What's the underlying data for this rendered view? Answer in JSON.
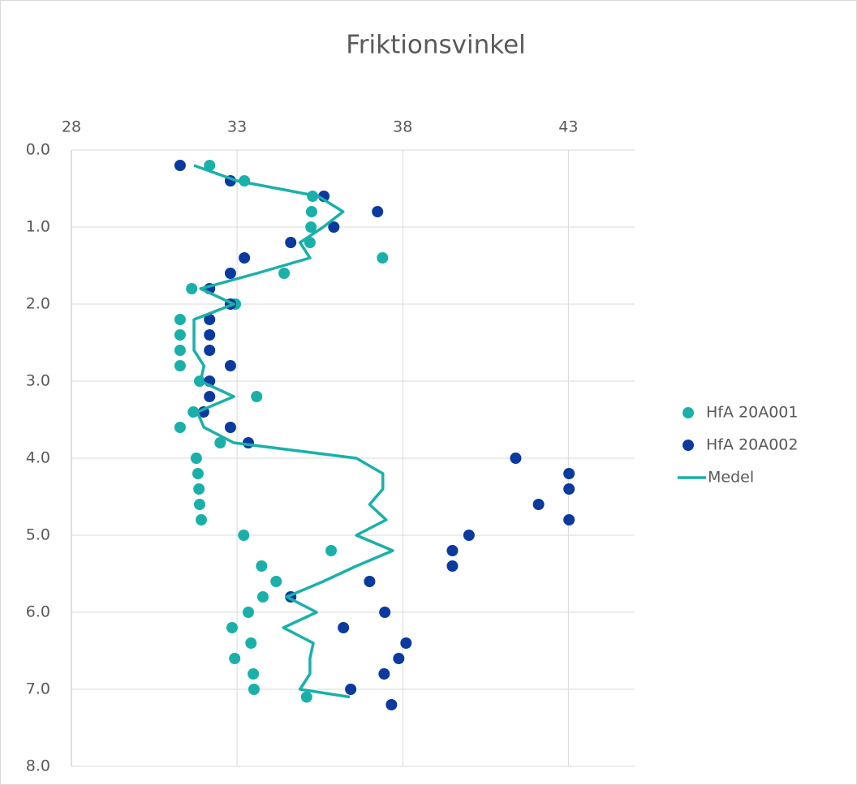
{
  "chart_data": {
    "type": "scatter",
    "title": "Friktionsvinkel",
    "xlim": [
      28,
      45
    ],
    "xticks": [
      28,
      33,
      38,
      43
    ],
    "xaxis_position": "top",
    "ylim": [
      0,
      8
    ],
    "y_inverted": true,
    "yticks": [
      {
        "value": 0,
        "label": "0.0"
      },
      {
        "value": 1,
        "label": "1.0"
      },
      {
        "value": 2,
        "label": "2.0"
      },
      {
        "value": 3,
        "label": "3.0"
      },
      {
        "value": 4,
        "label": "4.0"
      },
      {
        "value": 5,
        "label": "5.0"
      },
      {
        "value": 6,
        "label": "6.0"
      },
      {
        "value": 7,
        "label": "7.0"
      },
      {
        "value": 8,
        "label": "8.0"
      }
    ],
    "grid": true,
    "legend": "right",
    "series": [
      {
        "name": "HfA 20A001",
        "mode": "markers",
        "color": "#1ab0aa",
        "x": [
          32.17,
          33.22,
          35.28,
          35.25,
          35.23,
          35.2,
          37.39,
          34.42,
          31.63,
          32.95,
          31.28,
          31.28,
          31.28,
          31.28,
          31.87,
          33.59,
          31.68,
          31.28,
          32.49,
          31.77,
          31.82,
          31.85,
          31.87,
          31.92,
          33.2,
          35.84,
          33.74,
          34.18,
          33.78,
          33.34,
          32.85,
          33.42,
          32.93,
          33.49,
          33.51,
          35.1
        ],
        "y": [
          0.2,
          0.4,
          0.6,
          0.8,
          1.0,
          1.2,
          1.4,
          1.6,
          1.8,
          2.0,
          2.2,
          2.4,
          2.6,
          2.8,
          3.0,
          3.2,
          3.4,
          3.6,
          3.8,
          4.0,
          4.2,
          4.4,
          4.6,
          4.8,
          5.0,
          5.2,
          5.4,
          5.6,
          5.8,
          6.0,
          6.2,
          6.4,
          6.6,
          6.8,
          7.0,
          7.1
        ]
      },
      {
        "name": "HfA 20A002",
        "mode": "markers",
        "color": "#0a3a9e",
        "x": [
          31.28,
          32.8,
          35.62,
          37.24,
          35.92,
          34.62,
          33.22,
          32.8,
          32.17,
          32.8,
          32.17,
          32.17,
          32.17,
          32.8,
          32.17,
          32.17,
          31.99,
          32.8,
          33.34,
          41.41,
          43.02,
          43.02,
          42.1,
          43.02,
          40.0,
          39.5,
          39.5,
          37.0,
          34.62,
          37.46,
          36.21,
          38.1,
          37.88,
          37.44,
          36.43,
          37.66
        ],
        "y": [
          0.2,
          0.4,
          0.6,
          0.8,
          1.0,
          1.2,
          1.4,
          1.6,
          1.8,
          2.0,
          2.2,
          2.4,
          2.6,
          2.8,
          3.0,
          3.2,
          3.4,
          3.6,
          3.8,
          4.0,
          4.2,
          4.4,
          4.6,
          4.8,
          5.0,
          5.2,
          5.4,
          5.6,
          5.8,
          6.0,
          6.2,
          6.4,
          6.6,
          6.8,
          7.0,
          7.2
        ]
      },
      {
        "name": "Medel",
        "mode": "line",
        "color": "#1ab0aa",
        "x": [
          31.7,
          33.0,
          35.45,
          36.2,
          35.6,
          34.9,
          35.2,
          33.6,
          31.9,
          32.9,
          31.7,
          31.7,
          31.7,
          32.0,
          31.9,
          32.9,
          31.8,
          32.0,
          32.9,
          36.6,
          37.4,
          37.4,
          37.0,
          37.5,
          36.6,
          37.7,
          36.6,
          35.6,
          34.5,
          35.4,
          34.4,
          35.3,
          35.2,
          35.2,
          34.9,
          36.4
        ],
        "y": [
          0.2,
          0.4,
          0.6,
          0.8,
          1.0,
          1.2,
          1.4,
          1.6,
          1.8,
          2.0,
          2.2,
          2.4,
          2.6,
          2.8,
          3.0,
          3.2,
          3.4,
          3.6,
          3.8,
          4.0,
          4.2,
          4.4,
          4.6,
          4.8,
          5.0,
          5.2,
          5.4,
          5.6,
          5.8,
          6.0,
          6.2,
          6.4,
          6.6,
          6.8,
          7.0,
          7.1
        ]
      }
    ]
  }
}
